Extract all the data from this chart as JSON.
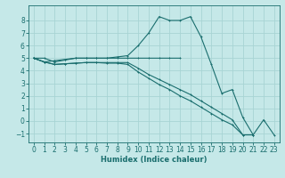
{
  "title": "",
  "xlabel": "Humidex (Indice chaleur)",
  "xlim": [
    -0.5,
    23.5
  ],
  "ylim": [
    -1.7,
    9.2
  ],
  "xticks": [
    0,
    1,
    2,
    3,
    4,
    5,
    6,
    7,
    8,
    9,
    10,
    11,
    12,
    13,
    14,
    15,
    16,
    17,
    18,
    19,
    20,
    21,
    22,
    23
  ],
  "yticks": [
    -1,
    0,
    1,
    2,
    3,
    4,
    5,
    6,
    7,
    8
  ],
  "background_color": "#c5e8e8",
  "grid_color": "#a8d4d4",
  "line_color": "#1a6e6e",
  "lines": [
    {
      "x": [
        0,
        1,
        2,
        3,
        4,
        5,
        6,
        7,
        8,
        9,
        10,
        11,
        12,
        13,
        14
      ],
      "y": [
        5.0,
        5.0,
        4.7,
        4.85,
        5.0,
        5.0,
        5.0,
        5.0,
        5.0,
        5.0,
        5.0,
        5.0,
        5.0,
        5.0,
        5.0
      ]
    },
    {
      "x": [
        0,
        1,
        2,
        3,
        4,
        5,
        6,
        7,
        8,
        9,
        10,
        11,
        12,
        13,
        14,
        15,
        16,
        17,
        18,
        19,
        20,
        21,
        22,
        23
      ],
      "y": [
        5.0,
        4.7,
        4.8,
        4.9,
        5.0,
        5.0,
        5.0,
        5.0,
        5.1,
        5.2,
        6.0,
        7.0,
        8.3,
        8.0,
        8.0,
        8.3,
        6.7,
        4.5,
        2.2,
        2.5,
        0.3,
        -1.1,
        0.1,
        -1.1
      ]
    },
    {
      "x": [
        0,
        1,
        2,
        3,
        4,
        5,
        6,
        7,
        8,
        9,
        10,
        11,
        12,
        13,
        14,
        15,
        16,
        17,
        18,
        19,
        20,
        21
      ],
      "y": [
        5.0,
        4.7,
        4.5,
        4.55,
        4.6,
        4.65,
        4.65,
        4.65,
        4.65,
        4.65,
        4.2,
        3.7,
        3.3,
        2.9,
        2.5,
        2.1,
        1.6,
        1.1,
        0.6,
        0.1,
        -1.1,
        -1.1
      ]
    },
    {
      "x": [
        0,
        1,
        2,
        3,
        4,
        5,
        6,
        7,
        8,
        9,
        10,
        11,
        12,
        13,
        14,
        15,
        16,
        17,
        18,
        19,
        20,
        21
      ],
      "y": [
        5.0,
        4.7,
        4.5,
        4.55,
        4.6,
        4.65,
        4.65,
        4.6,
        4.6,
        4.5,
        3.9,
        3.4,
        2.9,
        2.5,
        2.0,
        1.6,
        1.1,
        0.6,
        0.1,
        -0.3,
        -1.1,
        -1.1
      ]
    }
  ],
  "tick_fontsize": 5.5,
  "xlabel_fontsize": 6.0,
  "linewidth": 0.8,
  "markersize": 2.0
}
